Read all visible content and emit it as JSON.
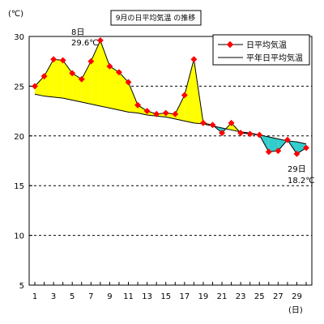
{
  "chart_data": {
    "type": "line",
    "title": "9月の日平均気温 の推移",
    "unit_label": "(℃)",
    "xlabel_unit": "(日)",
    "xlim": [
      1,
      30
    ],
    "ylim": [
      5,
      30
    ],
    "y_ticks": [
      5,
      10,
      15,
      20,
      25,
      30
    ],
    "x_ticks": [
      1,
      3,
      5,
      7,
      9,
      11,
      13,
      15,
      17,
      19,
      21,
      23,
      25,
      27,
      29
    ],
    "grid": "horizontal dashed",
    "legend_position": "top-right",
    "x": [
      1,
      2,
      3,
      4,
      5,
      6,
      7,
      8,
      9,
      10,
      11,
      12,
      13,
      14,
      15,
      16,
      17,
      18,
      19,
      20,
      21,
      22,
      23,
      24,
      25,
      26,
      27,
      28,
      29,
      30
    ],
    "series": [
      {
        "name": "日平均気温",
        "color": "#ff0000",
        "marker": "diamond",
        "values": [
          25.0,
          26.0,
          27.7,
          27.6,
          26.3,
          25.7,
          27.5,
          29.6,
          27.0,
          26.4,
          25.4,
          23.1,
          22.5,
          22.2,
          22.3,
          22.2,
          24.1,
          27.7,
          21.3,
          21.1,
          20.3,
          21.3,
          20.3,
          20.2,
          20.1,
          18.4,
          18.5,
          19.6,
          18.2,
          18.8
        ]
      },
      {
        "name": "平年日平均気温",
        "color": "#000000",
        "values": [
          24.2,
          24.0,
          23.9,
          23.8,
          23.6,
          23.4,
          23.2,
          23.0,
          22.8,
          22.6,
          22.4,
          22.3,
          22.1,
          22.0,
          21.9,
          21.7,
          21.5,
          21.3,
          21.2,
          21.0,
          20.8,
          20.6,
          20.4,
          20.3,
          20.1,
          19.9,
          19.7,
          19.5,
          19.4,
          19.2
        ]
      }
    ],
    "fill_above_color": "#ffff00",
    "fill_below_color": "#33cccc",
    "annotations": [
      {
        "day_label": "8日",
        "value_label": "29.6℃"
      },
      {
        "day_label": "29日",
        "value_label": "18.2℃"
      }
    ]
  }
}
